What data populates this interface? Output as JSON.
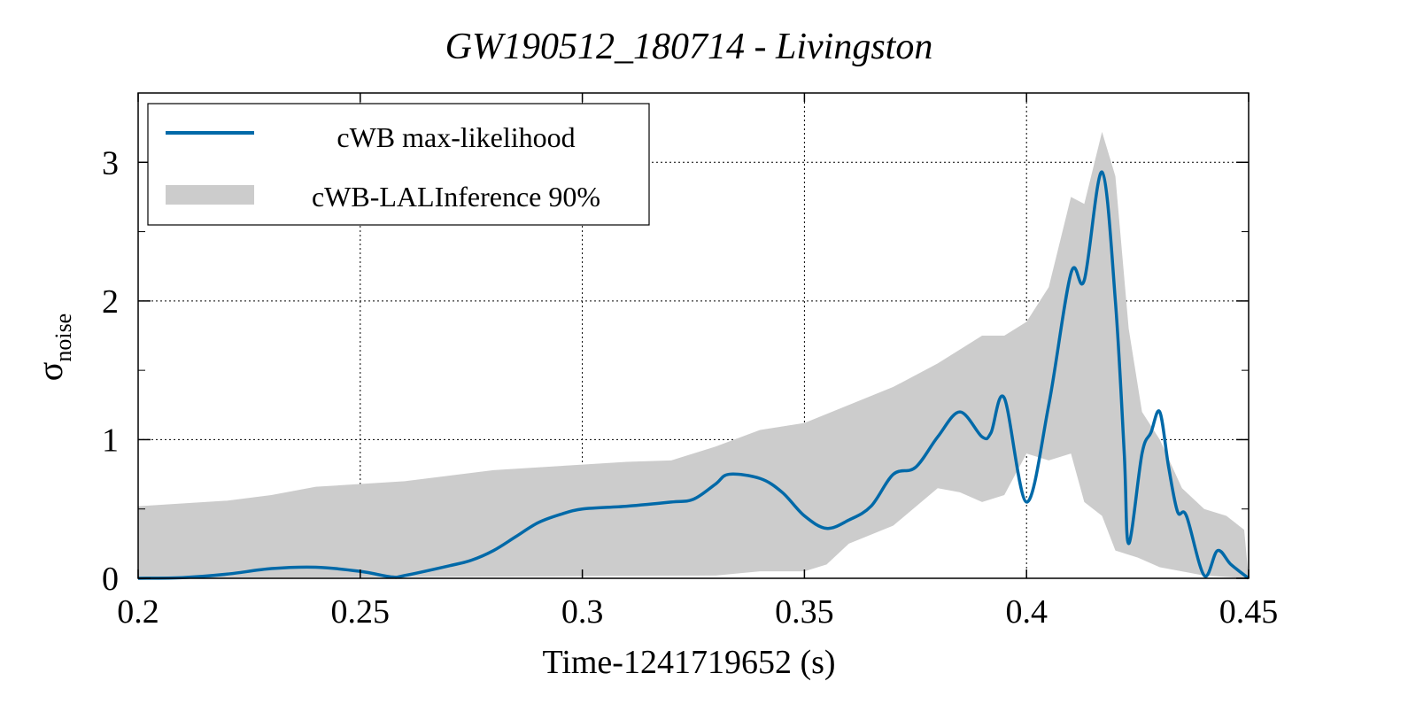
{
  "chart_data": {
    "type": "line",
    "title": "GW190512_180714 - Livingston",
    "xlabel": "Time-1241719652 (s)",
    "ylabel_main": "σ",
    "ylabel_sub": "noise",
    "xlim": [
      0.2,
      0.45
    ],
    "ylim": [
      0,
      3.5
    ],
    "xticks": [
      0.2,
      0.25,
      0.3,
      0.35,
      0.4,
      0.45
    ],
    "xtick_labels": [
      "0.2",
      "0.25",
      "0.3",
      "0.35",
      "0.4",
      "0.45"
    ],
    "yticks": [
      0,
      1,
      2,
      3
    ],
    "ytick_labels": [
      "0",
      "1",
      "2",
      "3"
    ],
    "grid": true,
    "legend_position": "top-left",
    "colors": {
      "line": "#0069a8",
      "band": "#cccccc"
    },
    "series": [
      {
        "name": "cWB max-likelihood",
        "x": [
          0.2,
          0.21,
          0.22,
          0.23,
          0.24,
          0.25,
          0.257,
          0.26,
          0.27,
          0.275,
          0.28,
          0.285,
          0.29,
          0.295,
          0.3,
          0.31,
          0.32,
          0.325,
          0.33,
          0.333,
          0.34,
          0.345,
          0.35,
          0.355,
          0.36,
          0.365,
          0.37,
          0.375,
          0.38,
          0.385,
          0.39,
          0.392,
          0.395,
          0.4,
          0.405,
          0.41,
          0.413,
          0.417,
          0.42,
          0.422,
          0.423,
          0.426,
          0.428,
          0.43,
          0.432,
          0.434,
          0.436,
          0.44,
          0.443,
          0.446,
          0.45
        ],
        "y": [
          0.0,
          0.005,
          0.03,
          0.07,
          0.08,
          0.05,
          0.01,
          0.02,
          0.09,
          0.13,
          0.2,
          0.3,
          0.4,
          0.46,
          0.5,
          0.52,
          0.55,
          0.57,
          0.68,
          0.75,
          0.72,
          0.62,
          0.45,
          0.36,
          0.42,
          0.52,
          0.75,
          0.8,
          1.02,
          1.2,
          1.02,
          1.05,
          1.3,
          0.55,
          1.25,
          2.2,
          2.15,
          2.93,
          2.0,
          0.9,
          0.25,
          0.9,
          1.05,
          1.2,
          0.8,
          0.48,
          0.45,
          0.02,
          0.2,
          0.1,
          0.0
        ]
      },
      {
        "name": "cWB-LALInference 90%",
        "type": "band",
        "x_upper": [
          0.2,
          0.22,
          0.23,
          0.24,
          0.25,
          0.26,
          0.27,
          0.28,
          0.29,
          0.3,
          0.31,
          0.32,
          0.33,
          0.34,
          0.35,
          0.36,
          0.37,
          0.38,
          0.39,
          0.395,
          0.4,
          0.405,
          0.41,
          0.413,
          0.417,
          0.42,
          0.423,
          0.426,
          0.43,
          0.435,
          0.44,
          0.445,
          0.449,
          0.45
        ],
        "upper": [
          0.52,
          0.56,
          0.6,
          0.66,
          0.68,
          0.7,
          0.74,
          0.78,
          0.8,
          0.82,
          0.84,
          0.85,
          0.95,
          1.07,
          1.12,
          1.25,
          1.38,
          1.55,
          1.75,
          1.75,
          1.85,
          2.1,
          2.75,
          2.7,
          3.22,
          2.9,
          1.8,
          1.2,
          1.0,
          0.65,
          0.5,
          0.45,
          0.35,
          0.0
        ],
        "x_lower": [
          0.2,
          0.33,
          0.34,
          0.35,
          0.355,
          0.36,
          0.37,
          0.38,
          0.385,
          0.39,
          0.395,
          0.4,
          0.405,
          0.41,
          0.413,
          0.417,
          0.42,
          0.425,
          0.43,
          0.44,
          0.45
        ],
        "lower": [
          0.0,
          0.02,
          0.05,
          0.05,
          0.1,
          0.25,
          0.38,
          0.65,
          0.62,
          0.55,
          0.6,
          0.9,
          0.85,
          0.9,
          0.55,
          0.45,
          0.2,
          0.15,
          0.08,
          0.02,
          0.0
        ]
      }
    ]
  }
}
